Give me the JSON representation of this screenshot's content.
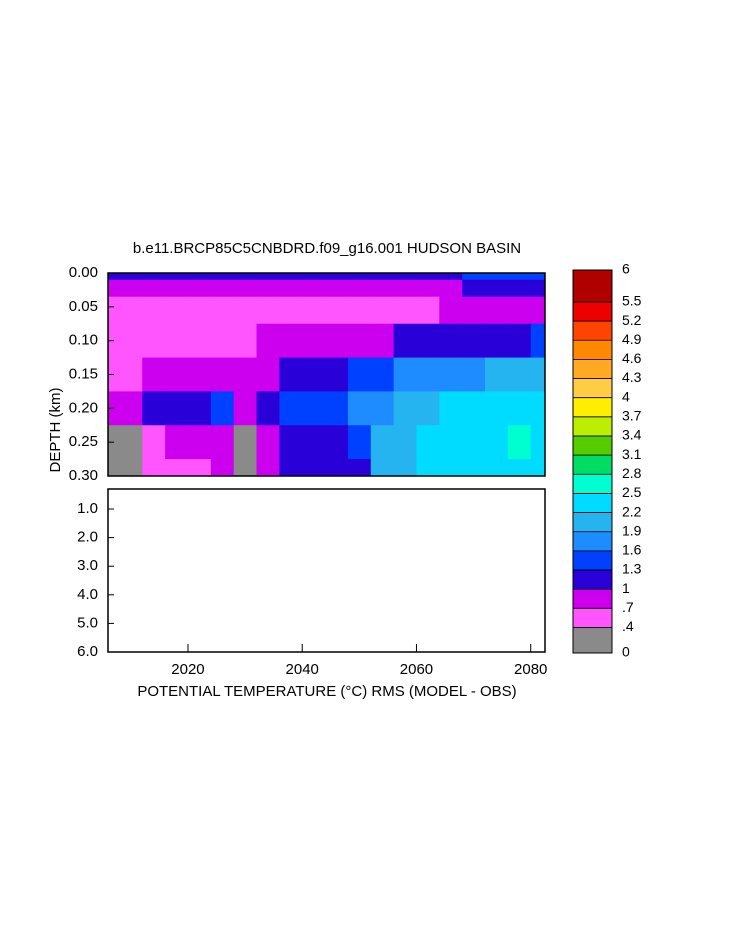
{
  "chart_data": {
    "type": "contour",
    "title": "b.e11.BRCP85C5CNBDRD.f09_g16.001 HUDSON BASIN",
    "x_label": "POTENTIAL TEMPERATURE (°C) RMS (MODEL - OBS)",
    "y_label": "DEPTH (km)",
    "x": [
      2006,
      2010,
      2014,
      2018,
      2022,
      2026,
      2030,
      2034,
      2038,
      2042,
      2046,
      2050,
      2054,
      2058,
      2062,
      2066,
      2070,
      2074,
      2078,
      2082
    ],
    "depth": [
      0.0,
      0.02,
      0.05,
      0.1,
      0.15,
      0.2,
      0.25,
      0.3
    ],
    "z": [
      [
        1.0,
        1.0,
        1.0,
        1.0,
        1.0,
        1.0,
        1.0,
        1.0,
        1.0,
        1.0,
        1.1,
        1.1,
        1.1,
        1.1,
        1.2,
        1.2,
        1.3,
        1.3,
        1.3,
        1.3
      ],
      [
        0.8,
        0.8,
        0.8,
        0.8,
        0.8,
        0.8,
        0.8,
        0.8,
        0.8,
        0.8,
        0.8,
        0.8,
        0.8,
        0.8,
        0.9,
        0.9,
        1.0,
        1.0,
        1.0,
        1.0
      ],
      [
        0.6,
        0.6,
        0.6,
        0.6,
        0.6,
        0.6,
        0.6,
        0.6,
        0.6,
        0.6,
        0.6,
        0.6,
        0.6,
        0.6,
        0.6,
        0.7,
        0.7,
        0.7,
        0.7,
        0.7
      ],
      [
        0.6,
        0.6,
        0.6,
        0.6,
        0.6,
        0.6,
        0.6,
        0.7,
        0.7,
        0.7,
        0.8,
        0.8,
        0.9,
        1.0,
        1.1,
        1.1,
        1.2,
        1.2,
        1.2,
        1.3
      ],
      [
        0.6,
        0.6,
        0.7,
        0.7,
        0.8,
        0.9,
        0.7,
        0.9,
        1.0,
        1.1,
        1.2,
        1.3,
        1.4,
        1.6,
        1.7,
        1.8,
        1.8,
        1.9,
        1.9,
        2.0
      ],
      [
        0.8,
        0.9,
        1.0,
        1.1,
        1.2,
        1.3,
        0.8,
        1.2,
        1.3,
        1.4,
        1.5,
        1.6,
        1.8,
        2.0,
        2.1,
        2.2,
        2.2,
        2.3,
        2.3,
        2.3
      ],
      [
        0.3,
        0.3,
        0.6,
        0.7,
        0.8,
        0.9,
        0.3,
        0.8,
        1.0,
        1.1,
        1.2,
        1.3,
        1.9,
        2.0,
        2.2,
        2.3,
        2.4,
        2.4,
        2.5,
        2.4
      ],
      [
        0.3,
        0.3,
        0.6,
        0.6,
        0.6,
        0.8,
        0.3,
        0.7,
        1.0,
        1.1,
        1.1,
        1.2,
        2.0,
        2.1,
        2.2,
        2.3,
        2.3,
        2.4,
        2.4,
        2.3
      ]
    ],
    "xlim": [
      2006,
      2082.5
    ],
    "xticks": [
      2020,
      2040,
      2060,
      2080
    ],
    "upper_ylim": [
      0,
      0.3
    ],
    "upper_yticks": [
      {
        "value": 0,
        "label": "0.00"
      },
      {
        "value": 0.05,
        "label": "0.05"
      },
      {
        "value": 0.1,
        "label": "0.10"
      },
      {
        "value": 0.15,
        "label": "0.15"
      },
      {
        "value": 0.2,
        "label": "0.20"
      },
      {
        "value": 0.25,
        "label": "0.25"
      },
      {
        "value": 0.3,
        "label": "0.30"
      }
    ],
    "lower_ylim": [
      0.3,
      6
    ],
    "lower_yticks": [
      {
        "value": 1,
        "label": "1.0"
      },
      {
        "value": 2,
        "label": "2.0"
      },
      {
        "value": 3,
        "label": "3.0"
      },
      {
        "value": 4,
        "label": "4.0"
      },
      {
        "value": 5,
        "label": "5.0"
      },
      {
        "value": 6,
        "label": "6.0"
      }
    ],
    "colorbar_lim": [
      0,
      6
    ],
    "colorbar_ticks": [
      0,
      {
        "value": 0.4,
        "label": ".4"
      },
      {
        "value": 0.7,
        "label": ".7"
      },
      1,
      1.3,
      1.6,
      1.9,
      2.2,
      2.5,
      2.8,
      3.1,
      3.4,
      3.7,
      4,
      4.3,
      4.6,
      4.9,
      5.2,
      5.5,
      6
    ],
    "colorbar_colors": [
      "#8a8a8a",
      "#ff55ff",
      "#cc00ee",
      "#2a00d8",
      "#0040ff",
      "#1e8cff",
      "#25b4f0",
      "#00dcff",
      "#00ffd0",
      "#00dd66",
      "#55cc00",
      "#bbee00",
      "#ffee00",
      "#ffcc44",
      "#ffaa22",
      "#ff8800",
      "#ff4400",
      "#ee0000",
      "#b00000"
    ]
  }
}
